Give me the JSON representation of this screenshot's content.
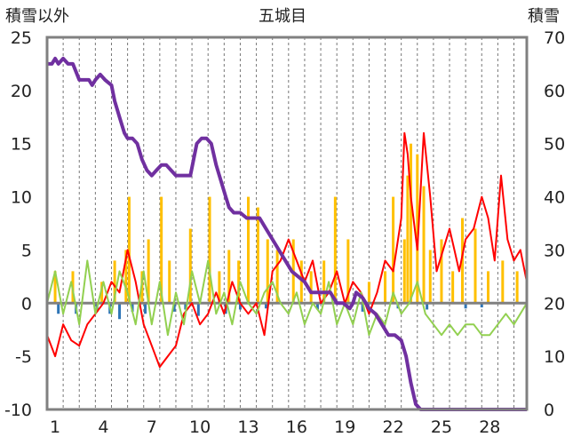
{
  "chart_data": {
    "type": "line",
    "title": "五城目",
    "y_left_label": "積雪以外",
    "y_right_label": "積雪",
    "y_left_range": [
      -10,
      25
    ],
    "y_left_ticks": [
      "25",
      "20",
      "15",
      "10",
      "5",
      "0",
      "-5",
      "-10"
    ],
    "y_right_range": [
      0,
      70
    ],
    "y_right_ticks": [
      "70",
      "60",
      "50",
      "40",
      "30",
      "20",
      "10",
      "0"
    ],
    "x_range": [
      0,
      29.8
    ],
    "x_tick_labels": [
      "1",
      "4",
      "7",
      "10",
      "13",
      "16",
      "19",
      "22",
      "25",
      "28"
    ],
    "grid": "vertical dashed lines daily",
    "colors": {
      "precipitation": "#ffc000",
      "negative_bars": "#2e75b6",
      "temperature": "#ff0000",
      "other": "#92d050",
      "snow_depth": "#7030a0",
      "zero_line": "#808080",
      "frame": "#808080"
    },
    "series": [
      {
        "type": "bar",
        "axis": "left",
        "color": "#ffc000",
        "points": [
          [
            0.5,
            3
          ],
          [
            1.6,
            3
          ],
          [
            3.4,
            2
          ],
          [
            4.2,
            4
          ],
          [
            4.9,
            5
          ],
          [
            5.1,
            10
          ],
          [
            5.9,
            3
          ],
          [
            6.3,
            6
          ],
          [
            7.1,
            10
          ],
          [
            7.6,
            4
          ],
          [
            8.9,
            7
          ],
          [
            10.1,
            10
          ],
          [
            10.7,
            3
          ],
          [
            11.3,
            5
          ],
          [
            11.9,
            4
          ],
          [
            12.5,
            10
          ],
          [
            13.1,
            9
          ],
          [
            13.7,
            6
          ],
          [
            14.3,
            5
          ],
          [
            15.3,
            6
          ],
          [
            15.8,
            4
          ],
          [
            16.4,
            3
          ],
          [
            17.2,
            4
          ],
          [
            17.9,
            10
          ],
          [
            18.7,
            6
          ],
          [
            20.0,
            2
          ],
          [
            21.0,
            3
          ],
          [
            21.5,
            10
          ],
          [
            22.2,
            6
          ],
          [
            22.4,
            12
          ],
          [
            22.6,
            15
          ],
          [
            23.0,
            14
          ],
          [
            23.4,
            11
          ],
          [
            23.8,
            5
          ],
          [
            24.5,
            6
          ],
          [
            25.2,
            3
          ],
          [
            25.8,
            8
          ],
          [
            26.6,
            7
          ],
          [
            27.4,
            3
          ],
          [
            28.3,
            4
          ],
          [
            29.2,
            3
          ]
        ]
      },
      {
        "type": "bar",
        "axis": "left",
        "color": "#2e75b6",
        "points": [
          [
            0.7,
            -1
          ],
          [
            1.8,
            -1
          ],
          [
            3.1,
            -0.8
          ],
          [
            3.9,
            -1
          ],
          [
            4.5,
            -1.5
          ],
          [
            5.3,
            -0.8
          ],
          [
            6.1,
            -1
          ],
          [
            7.9,
            -0.8
          ],
          [
            8.6,
            -0.6
          ],
          [
            9.4,
            -1.2
          ],
          [
            11.1,
            -1
          ],
          [
            12.0,
            -0.6
          ],
          [
            13.6,
            -0.5
          ],
          [
            16.8,
            -0.6
          ],
          [
            19.6,
            -0.8
          ],
          [
            21.8,
            -0.5
          ],
          [
            23.6,
            -0.6
          ],
          [
            26.0,
            -0.5
          ],
          [
            27.0,
            -0.4
          ]
        ]
      },
      {
        "type": "line",
        "axis": "left",
        "color": "#ff0000",
        "points": [
          [
            0,
            -3
          ],
          [
            0.5,
            -5
          ],
          [
            1,
            -2
          ],
          [
            1.5,
            -3.5
          ],
          [
            2,
            -4
          ],
          [
            2.5,
            -2
          ],
          [
            3,
            -1
          ],
          [
            3.5,
            0
          ],
          [
            4,
            2
          ],
          [
            4.5,
            1
          ],
          [
            5,
            5
          ],
          [
            5.5,
            2
          ],
          [
            6,
            -2
          ],
          [
            6.5,
            -4
          ],
          [
            7,
            -6
          ],
          [
            7.5,
            -5
          ],
          [
            8,
            -4
          ],
          [
            8.5,
            -1
          ],
          [
            9,
            0
          ],
          [
            9.5,
            -2
          ],
          [
            10,
            -1
          ],
          [
            10.5,
            1
          ],
          [
            11,
            -1
          ],
          [
            11.5,
            2
          ],
          [
            12,
            0
          ],
          [
            12.5,
            -1
          ],
          [
            13,
            0
          ],
          [
            13.5,
            -3
          ],
          [
            14,
            3
          ],
          [
            14.5,
            4
          ],
          [
            15,
            6
          ],
          [
            15.5,
            4
          ],
          [
            16,
            2
          ],
          [
            16.5,
            4
          ],
          [
            17,
            0
          ],
          [
            17.5,
            1
          ],
          [
            18,
            3
          ],
          [
            18.5,
            0
          ],
          [
            19,
            2
          ],
          [
            19.5,
            1
          ],
          [
            20,
            -1
          ],
          [
            20.5,
            1
          ],
          [
            21,
            4
          ],
          [
            21.5,
            3
          ],
          [
            22,
            8
          ],
          [
            22.2,
            16
          ],
          [
            22.4,
            14
          ],
          [
            22.6,
            10
          ],
          [
            23,
            5
          ],
          [
            23.4,
            16
          ],
          [
            23.8,
            10
          ],
          [
            24.2,
            3
          ],
          [
            24.6,
            5
          ],
          [
            25,
            7
          ],
          [
            25.3,
            5
          ],
          [
            25.6,
            3
          ],
          [
            26,
            6
          ],
          [
            26.5,
            7
          ],
          [
            27,
            10
          ],
          [
            27.4,
            8
          ],
          [
            27.8,
            4
          ],
          [
            28.2,
            12
          ],
          [
            28.6,
            6
          ],
          [
            29,
            4
          ],
          [
            29.4,
            5
          ],
          [
            29.8,
            2
          ]
        ]
      },
      {
        "type": "line",
        "axis": "left",
        "color": "#92d050",
        "points": [
          [
            0,
            0
          ],
          [
            0.5,
            3
          ],
          [
            1,
            -1
          ],
          [
            1.5,
            2
          ],
          [
            2,
            -2
          ],
          [
            2.5,
            4
          ],
          [
            3,
            -1
          ],
          [
            3.5,
            2
          ],
          [
            4,
            -1
          ],
          [
            4.5,
            3
          ],
          [
            5,
            1
          ],
          [
            5.5,
            -2
          ],
          [
            6,
            3
          ],
          [
            6.5,
            -2
          ],
          [
            7,
            2
          ],
          [
            7.5,
            -3
          ],
          [
            8,
            1
          ],
          [
            8.5,
            -2
          ],
          [
            9,
            3
          ],
          [
            9.5,
            0
          ],
          [
            10,
            4
          ],
          [
            10.5,
            -1
          ],
          [
            11,
            1
          ],
          [
            11.5,
            -2
          ],
          [
            12,
            2
          ],
          [
            12.5,
            0
          ],
          [
            13,
            -1
          ],
          [
            13.5,
            1
          ],
          [
            14,
            2
          ],
          [
            14.5,
            0
          ],
          [
            15,
            -1
          ],
          [
            15.5,
            1
          ],
          [
            16,
            -2
          ],
          [
            16.5,
            0
          ],
          [
            17,
            -1
          ],
          [
            17.5,
            2
          ],
          [
            18,
            -2
          ],
          [
            18.5,
            0
          ],
          [
            19,
            -2
          ],
          [
            19.5,
            1
          ],
          [
            20,
            -3
          ],
          [
            20.5,
            -1
          ],
          [
            21,
            -2
          ],
          [
            21.5,
            1
          ],
          [
            22,
            -1
          ],
          [
            22.5,
            0
          ],
          [
            23,
            2
          ],
          [
            23.5,
            -1
          ],
          [
            24,
            -2
          ],
          [
            24.5,
            -3
          ],
          [
            25,
            -2
          ],
          [
            25.5,
            -3
          ],
          [
            26,
            -2
          ],
          [
            26.5,
            -2
          ],
          [
            27,
            -3
          ],
          [
            27.5,
            -3
          ],
          [
            28,
            -2
          ],
          [
            28.5,
            -1
          ],
          [
            29,
            -2
          ],
          [
            29.8,
            0
          ]
        ]
      },
      {
        "type": "line",
        "axis": "right",
        "color": "#7030a0",
        "points": [
          [
            0,
            65
          ],
          [
            0.3,
            65
          ],
          [
            0.5,
            66
          ],
          [
            0.7,
            65
          ],
          [
            1.0,
            66
          ],
          [
            1.3,
            65
          ],
          [
            1.6,
            65
          ],
          [
            2,
            62
          ],
          [
            2.3,
            62
          ],
          [
            2.6,
            62
          ],
          [
            2.8,
            61
          ],
          [
            3,
            62
          ],
          [
            3.3,
            63
          ],
          [
            3.6,
            62
          ],
          [
            4,
            61
          ],
          [
            4.2,
            58
          ],
          [
            4.5,
            55
          ],
          [
            4.8,
            52
          ],
          [
            5,
            51
          ],
          [
            5.3,
            51
          ],
          [
            5.6,
            50
          ],
          [
            5.9,
            47
          ],
          [
            6.2,
            45
          ],
          [
            6.5,
            44
          ],
          [
            6.8,
            45
          ],
          [
            7.1,
            46
          ],
          [
            7.4,
            46
          ],
          [
            7.7,
            45
          ],
          [
            8,
            44
          ],
          [
            8.5,
            44
          ],
          [
            8.9,
            44
          ],
          [
            9.1,
            47
          ],
          [
            9.3,
            50
          ],
          [
            9.6,
            51
          ],
          [
            9.9,
            51
          ],
          [
            10.2,
            50
          ],
          [
            10.5,
            46
          ],
          [
            10.8,
            43
          ],
          [
            11.1,
            40
          ],
          [
            11.3,
            38
          ],
          [
            11.6,
            37
          ],
          [
            12,
            37
          ],
          [
            12.4,
            36
          ],
          [
            12.8,
            36
          ],
          [
            13.2,
            36
          ],
          [
            13.6,
            34
          ],
          [
            14,
            32
          ],
          [
            14.4,
            30
          ],
          [
            14.8,
            28
          ],
          [
            15.2,
            26
          ],
          [
            15.6,
            25
          ],
          [
            16,
            24
          ],
          [
            16.4,
            22
          ],
          [
            17,
            22
          ],
          [
            17.6,
            22
          ],
          [
            18,
            20
          ],
          [
            18.4,
            20
          ],
          [
            18.8,
            19
          ],
          [
            19,
            20
          ],
          [
            19.2,
            22
          ],
          [
            19.6,
            21
          ],
          [
            20,
            19
          ],
          [
            20.4,
            18
          ],
          [
            20.8,
            16
          ],
          [
            21.2,
            14
          ],
          [
            21.6,
            14
          ],
          [
            22,
            13
          ],
          [
            22.3,
            10
          ],
          [
            22.6,
            5
          ],
          [
            22.9,
            1
          ],
          [
            23.2,
            0
          ],
          [
            24,
            0
          ],
          [
            25,
            0
          ],
          [
            26,
            0
          ],
          [
            27,
            0
          ],
          [
            28,
            0
          ],
          [
            29,
            0
          ],
          [
            29.8,
            0
          ]
        ]
      }
    ]
  }
}
